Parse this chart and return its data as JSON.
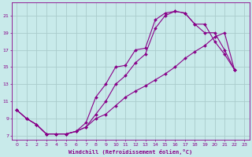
{
  "xlabel": "Windchill (Refroidissement éolien,°C)",
  "bg_color": "#c8eaea",
  "grid_color": "#aacccc",
  "line_color": "#880088",
  "xlim": [
    -0.5,
    23.5
  ],
  "ylim": [
    6.5,
    22.5
  ],
  "xticks": [
    0,
    1,
    2,
    3,
    4,
    5,
    6,
    7,
    8,
    9,
    10,
    11,
    12,
    13,
    14,
    15,
    16,
    17,
    18,
    19,
    20,
    21,
    22,
    23
  ],
  "yticks": [
    7,
    9,
    11,
    13,
    15,
    17,
    19,
    21
  ],
  "line1_x": [
    0,
    1,
    2,
    3,
    4,
    5,
    6,
    7,
    8,
    9,
    10,
    11,
    12,
    13,
    14,
    15,
    16,
    17,
    18,
    19,
    20,
    21,
    22
  ],
  "line1_y": [
    10,
    9,
    8.3,
    7.2,
    7.2,
    7.2,
    7.5,
    8.5,
    11.5,
    13,
    15,
    15.2,
    17,
    17.2,
    20.5,
    21.3,
    21.5,
    21.3,
    20,
    20,
    18,
    16.5,
    14.7
  ],
  "line2_x": [
    0,
    1,
    2,
    3,
    4,
    5,
    6,
    7,
    8,
    9,
    10,
    11,
    12,
    13,
    14,
    15,
    16,
    17,
    18,
    19,
    20,
    21,
    22
  ],
  "line2_y": [
    10,
    9,
    8.3,
    7.2,
    7.2,
    7.2,
    7.5,
    8.0,
    9.5,
    11,
    13,
    14,
    15.5,
    16.5,
    19.5,
    21,
    21.5,
    21.3,
    20,
    19,
    19,
    17,
    14.7
  ],
  "line3_x": [
    0,
    1,
    2,
    3,
    4,
    5,
    6,
    7,
    8,
    9,
    10,
    11,
    12,
    13,
    14,
    15,
    16,
    17,
    18,
    19,
    20,
    21,
    22
  ],
  "line3_y": [
    10,
    9,
    8.3,
    7.2,
    7.2,
    7.2,
    7.5,
    8.0,
    9.0,
    9.5,
    10.5,
    11.5,
    12.2,
    12.8,
    13.5,
    14.2,
    15,
    16,
    16.8,
    17.5,
    18.5,
    19,
    14.7
  ]
}
